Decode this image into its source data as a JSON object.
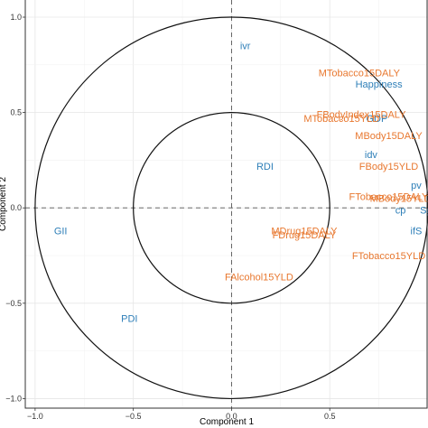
{
  "chart_data": {
    "type": "scatter",
    "title": "",
    "xlabel": "Component  1",
    "ylabel": "Component  2",
    "xlim": [
      -1.05,
      1.0
    ],
    "ylim": [
      -1.05,
      1.09
    ],
    "x_ticks": [
      -1.0,
      -0.5,
      0.0,
      0.5
    ],
    "y_ticks": [
      -1.0,
      -0.5,
      0.0,
      0.5,
      1.0
    ],
    "x_tick_labels": [
      "−1.0",
      "−0.5",
      "0.0",
      "0.5"
    ],
    "y_tick_labels": [
      "−1.0",
      "−0.5",
      "0.0",
      "0.5",
      "1.0"
    ],
    "grid": true,
    "reference_lines": {
      "x": 0,
      "y": 0,
      "style": "dashed"
    },
    "circles": [
      {
        "radius": 1.0
      },
      {
        "radius": 0.5
      }
    ],
    "colors": {
      "blue": "#2E7FB8",
      "orange": "#E8772E"
    },
    "series": [
      {
        "color": "#2E7FB8",
        "points": [
          {
            "label": "ivr",
            "x": 0.07,
            "y": 0.85
          },
          {
            "label": "Happiness",
            "x": 0.75,
            "y": 0.65
          },
          {
            "label": "GDP",
            "x": 0.74,
            "y": 0.47
          },
          {
            "label": "RDI",
            "x": 0.17,
            "y": 0.22
          },
          {
            "label": "idv",
            "x": 0.71,
            "y": 0.28
          },
          {
            "label": "pv",
            "x": 0.94,
            "y": 0.12
          },
          {
            "label": "cp",
            "x": 0.86,
            "y": -0.01
          },
          {
            "label": "Sg",
            "x": 0.99,
            "y": -0.01
          },
          {
            "label": "ifS",
            "x": 0.94,
            "y": -0.12
          },
          {
            "label": "GII",
            "x": -0.87,
            "y": -0.12
          },
          {
            "label": "PDI",
            "x": -0.52,
            "y": -0.58
          }
        ]
      },
      {
        "color": "#E8772E",
        "points": [
          {
            "label": "MTobacco15DALY",
            "x": 0.65,
            "y": 0.71
          },
          {
            "label": "FBodyIndex15DALY",
            "x": 0.66,
            "y": 0.49
          },
          {
            "label": "MTobacco15YLD",
            "x": 0.56,
            "y": 0.47
          },
          {
            "label": "MBody15DALY",
            "x": 0.8,
            "y": 0.38
          },
          {
            "label": "FBody15YLD",
            "x": 0.8,
            "y": 0.22
          },
          {
            "label": "FTobacco15DALY",
            "x": 0.8,
            "y": 0.06
          },
          {
            "label": "MBody15YLD",
            "x": 0.86,
            "y": 0.05
          },
          {
            "label": "MDrug15DALY",
            "x": 0.37,
            "y": -0.12
          },
          {
            "label": "FDrug15DALY",
            "x": 0.37,
            "y": -0.14
          },
          {
            "label": "FTobacco15YLD",
            "x": 0.8,
            "y": -0.25
          },
          {
            "label": "FAlcohol15YLD",
            "x": 0.14,
            "y": -0.36
          }
        ]
      }
    ]
  }
}
